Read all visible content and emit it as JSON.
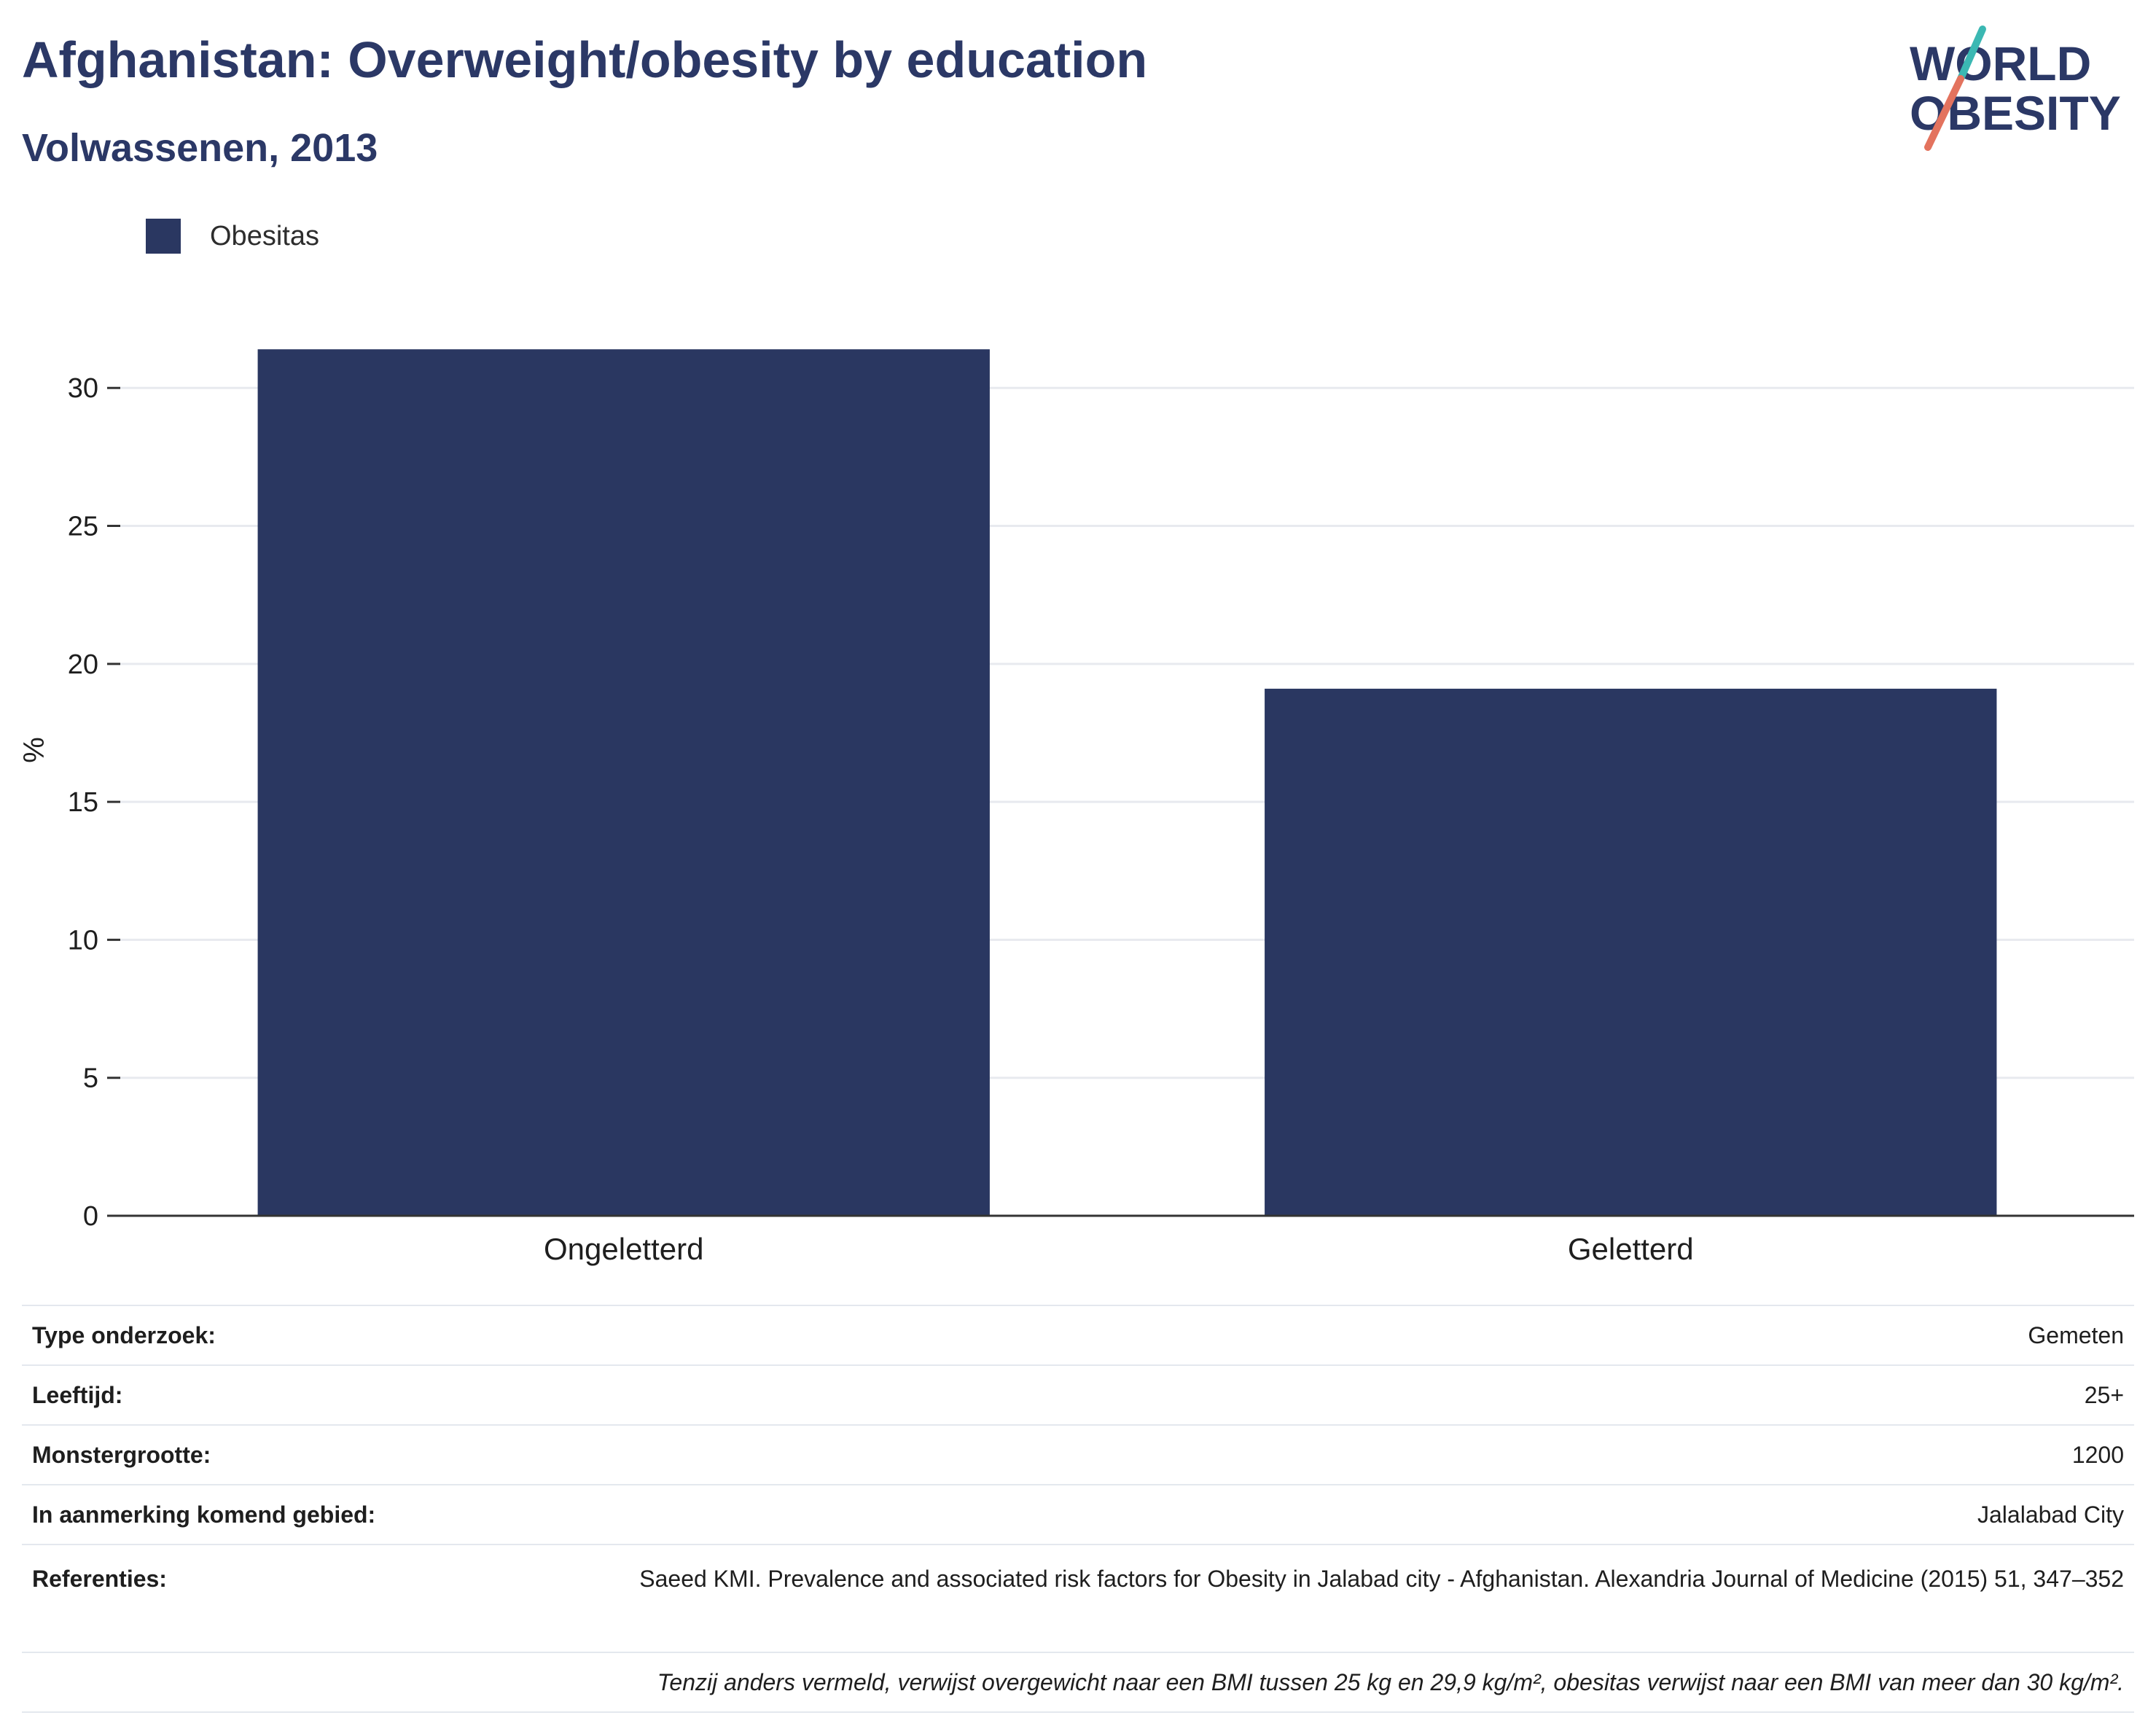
{
  "header": {
    "title": "Afghanistan: Overweight/obesity by education",
    "subtitle": "Volwassenen, 2013"
  },
  "logo": {
    "line1": "WORLD",
    "line2": "OBESITY",
    "accent_top": "#3bb8b3",
    "accent_bottom": "#e3735e"
  },
  "colors": {
    "bar": "#2a3761",
    "grid": "#e8eaef",
    "axis": "#333333"
  },
  "chart_data": {
    "type": "bar",
    "categories": [
      "Ongeletterd",
      "Geletterd"
    ],
    "series": [
      {
        "name": "Obesitas",
        "values": [
          31.4,
          19.1
        ]
      }
    ],
    "ylabel": "%",
    "ylim": [
      0,
      35
    ],
    "yticks": [
      0,
      5,
      10,
      15,
      20,
      25,
      30
    ],
    "grid": true,
    "legend": "top-left"
  },
  "meta": {
    "rows": [
      {
        "label": "Type onderzoek:",
        "value": "Gemeten"
      },
      {
        "label": "Leeftijd:",
        "value": "25+"
      },
      {
        "label": "Monstergrootte:",
        "value": "1200"
      },
      {
        "label": "In aanmerking komend gebied:",
        "value": "Jalalabad City"
      },
      {
        "label": "Referenties:",
        "value": "Saeed KMI. Prevalence and associated risk factors for Obesity in Jalabad city - Afghanistan. Alexandria Journal of Medicine (2015) 51, 347–352"
      }
    ],
    "note": "Tenzij anders vermeld, verwijst overgewicht naar een BMI tussen 25 kg en 29,9 kg/m², obesitas verwijst naar een BMI van meer dan 30 kg/m²."
  }
}
